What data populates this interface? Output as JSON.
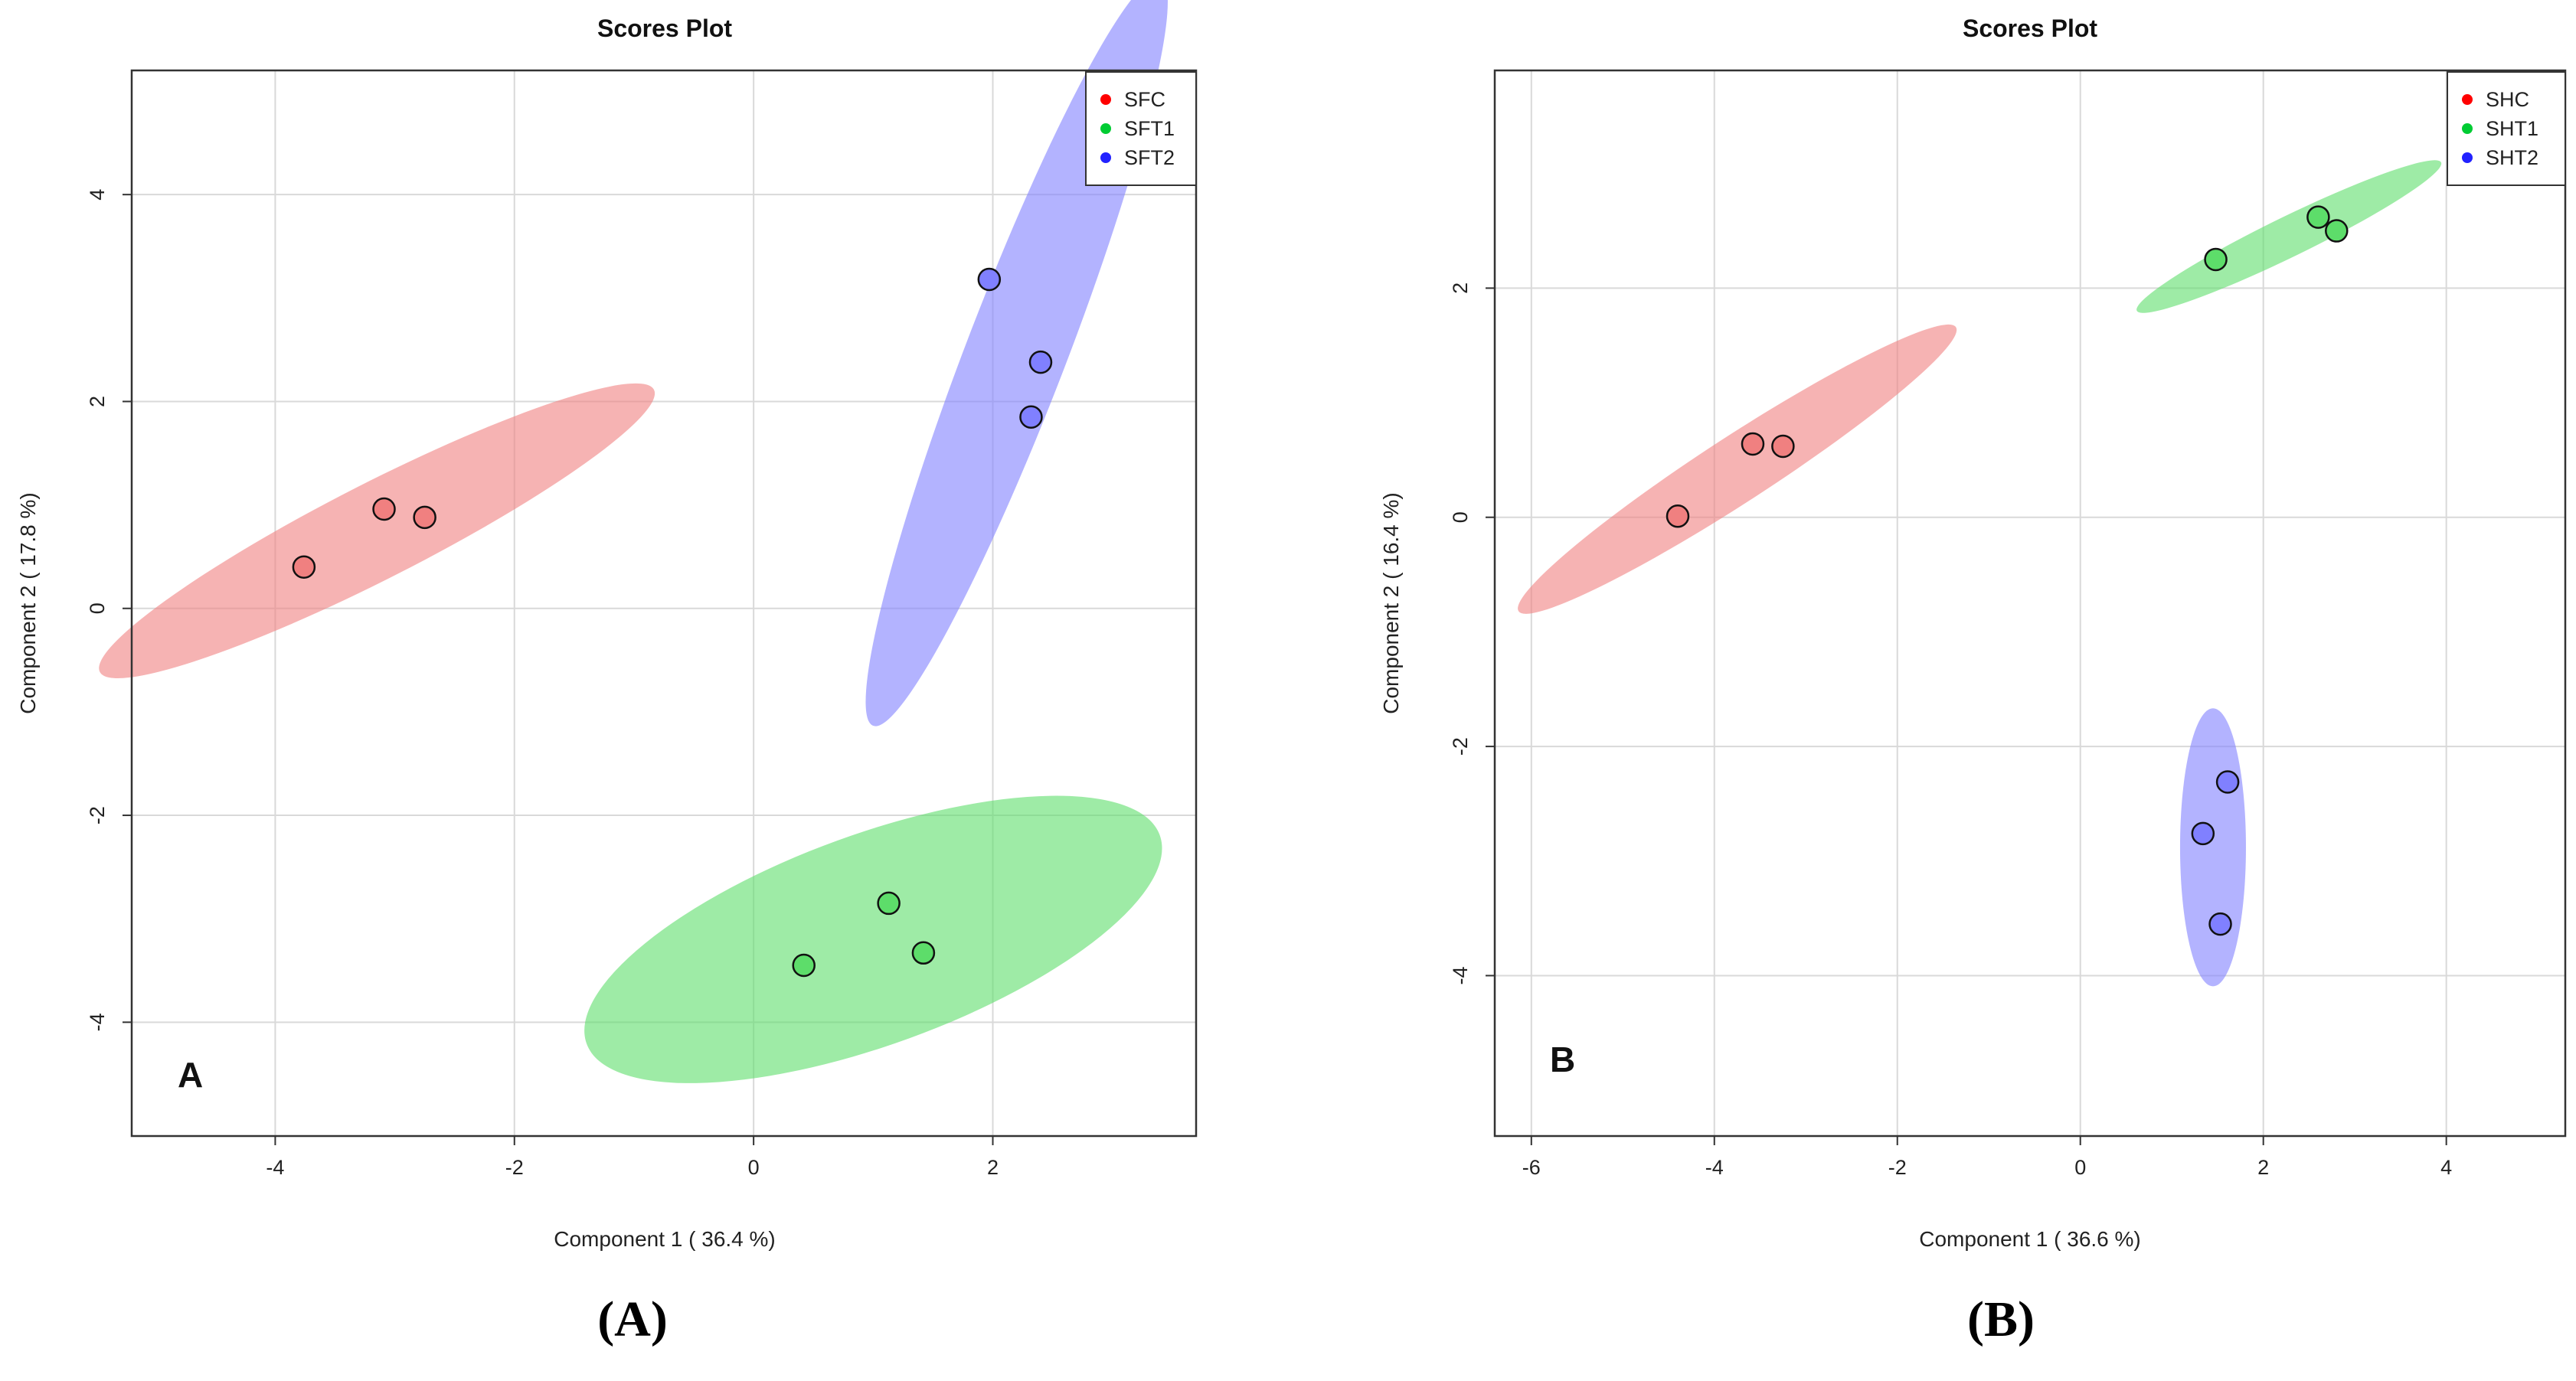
{
  "colors": {
    "red": "#ff0000",
    "green": "#00cc33",
    "blue": "#2222ff",
    "red_fill": "#f08080",
    "green_fill": "#5ddd6a",
    "blue_fill": "#8080ff"
  },
  "chart_data": [
    {
      "type": "scatter",
      "title": "Scores Plot",
      "xlabel": "Component 1 ( 36.4 %)",
      "ylabel": "Component 2 ( 17.8 %)",
      "panel_mark": "A",
      "caption": "(A)",
      "xlim": [
        -5.2,
        3.7
      ],
      "ylim": [
        -5.1,
        5.2
      ],
      "xticks": [
        -4,
        -2,
        0,
        2
      ],
      "yticks": [
        -4,
        -2,
        0,
        2,
        4
      ],
      "grid": true,
      "legend_position": "top-right",
      "series": [
        {
          "name": "SFC",
          "color": "red",
          "x": [
            -3.76,
            -3.09,
            -2.75
          ],
          "y": [
            0.4,
            0.96,
            0.88
          ],
          "ellipse": {
            "cx": -3.15,
            "cy": 0.75,
            "rx": 2.6,
            "ry": 0.4,
            "angle": 27
          }
        },
        {
          "name": "SFT1",
          "color": "green",
          "x": [
            1.13,
            1.42,
            0.42
          ],
          "y": [
            -2.85,
            -3.33,
            -3.45
          ],
          "ellipse": {
            "cx": 1.0,
            "cy": -3.2,
            "rx": 2.55,
            "ry": 0.88,
            "angle": 20
          }
        },
        {
          "name": "SFT2",
          "color": "blue",
          "x": [
            1.97,
            2.4,
            2.32
          ],
          "y": [
            3.18,
            2.38,
            1.85
          ],
          "ellipse": {
            "cx": 2.2,
            "cy": 2.48,
            "rx": 3.35,
            "ry": 0.42,
            "angle": 69
          }
        }
      ]
    },
    {
      "type": "scatter",
      "title": "Scores Plot",
      "xlabel": "Component 1 ( 36.6 %)",
      "ylabel": "Component 2 ( 16.4 %)",
      "panel_mark": "B",
      "caption": "(B)",
      "xlim": [
        -6.4,
        5.3
      ],
      "ylim": [
        -5.4,
        3.9
      ],
      "xticks": [
        -6,
        -4,
        -2,
        0,
        2,
        4
      ],
      "yticks": [
        -4,
        -2,
        0,
        2
      ],
      "grid": true,
      "legend_position": "top-right",
      "series": [
        {
          "name": "SHC",
          "color": "red",
          "x": [
            -4.4,
            -3.58,
            -3.25
          ],
          "y": [
            0.01,
            0.64,
            0.62
          ],
          "ellipse": {
            "cx": -3.75,
            "cy": 0.42,
            "rx": 2.85,
            "ry": 0.36,
            "angle": 33
          }
        },
        {
          "name": "SHT1",
          "color": "green",
          "x": [
            1.48,
            2.6,
            2.8
          ],
          "y": [
            2.25,
            2.62,
            2.5
          ],
          "ellipse": {
            "cx": 2.28,
            "cy": 2.45,
            "rx": 1.85,
            "ry": 0.22,
            "angle": 26
          }
        },
        {
          "name": "SHT2",
          "color": "blue",
          "x": [
            1.61,
            1.34,
            1.53
          ],
          "y": [
            -2.31,
            -2.76,
            -3.55
          ],
          "ellipse": {
            "cx": 1.45,
            "cy": -2.88,
            "rx": 0.36,
            "ry": 1.52,
            "angle": 0
          }
        }
      ]
    }
  ]
}
